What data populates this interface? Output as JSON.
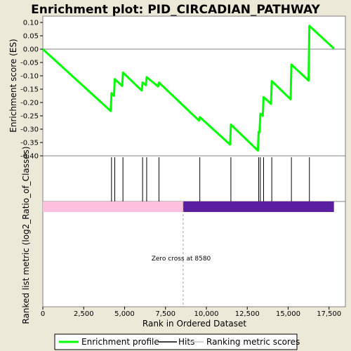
{
  "chart_data": {
    "type": "line",
    "title": "Enrichment plot: PID_CIRCADIAN_PATHWAY",
    "ylabel": "Enrichment score (ES)",
    "ylabel_bottom": "Ranked list metric (log2_Ratio_of_Classes)",
    "xlabel": "Rank in Ordered Dataset",
    "xlim": [
      0,
      18500
    ],
    "ylim": [
      -0.4,
      0.1
    ],
    "y_ticks": [
      "0.10",
      "0.05",
      "0.00",
      "-0.05",
      "-0.10",
      "-0.15",
      "-0.20",
      "-0.25",
      "-0.30",
      "-0.35",
      "-0.40"
    ],
    "x_ticks": [
      "0",
      "2,500",
      "5,000",
      "7,500",
      "10,000",
      "12,500",
      "15,000",
      "17,500"
    ],
    "annotation": "Zero cross at 8580",
    "zero_cross": 8580,
    "max_rank": 17800,
    "grid": false,
    "legend_position": "bottom",
    "legend": [
      {
        "label": "Enrichment profile",
        "color": "#00ff00"
      },
      {
        "label": "Hits",
        "color": "#000000"
      },
      {
        "label": "Ranking metric scores",
        "color": "#c0c0c0"
      }
    ],
    "hits": [
      4200,
      4400,
      4900,
      6100,
      6350,
      7100,
      9600,
      11500,
      13200,
      13300,
      13500,
      14000,
      15200,
      16300
    ],
    "series": [
      {
        "color": "#00ff00",
        "x": [
          0,
          4150,
          4200,
          4350,
          4400,
          4850,
          4900,
          6050,
          6100,
          6300,
          6350,
          7050,
          7100,
          9550,
          9600,
          11450,
          11500,
          13150,
          13200,
          13250,
          13300,
          13450,
          13500,
          13950,
          14000,
          15150,
          15200,
          16250,
          16300,
          17800
        ],
        "y": [
          0.0,
          -0.232,
          -0.165,
          -0.175,
          -0.112,
          -0.138,
          -0.088,
          -0.155,
          -0.125,
          -0.135,
          -0.105,
          -0.14,
          -0.125,
          -0.268,
          -0.255,
          -0.358,
          -0.283,
          -0.38,
          -0.31,
          -0.312,
          -0.242,
          -0.25,
          -0.18,
          -0.205,
          -0.12,
          -0.188,
          -0.058,
          -0.118,
          0.087,
          0.002
        ]
      }
    ],
    "metric_bar": {
      "positive_color": "#ffc0e0",
      "negative_color": "#5a1ea0"
    }
  },
  "axis_color": "#808080",
  "background": "#ffffff"
}
